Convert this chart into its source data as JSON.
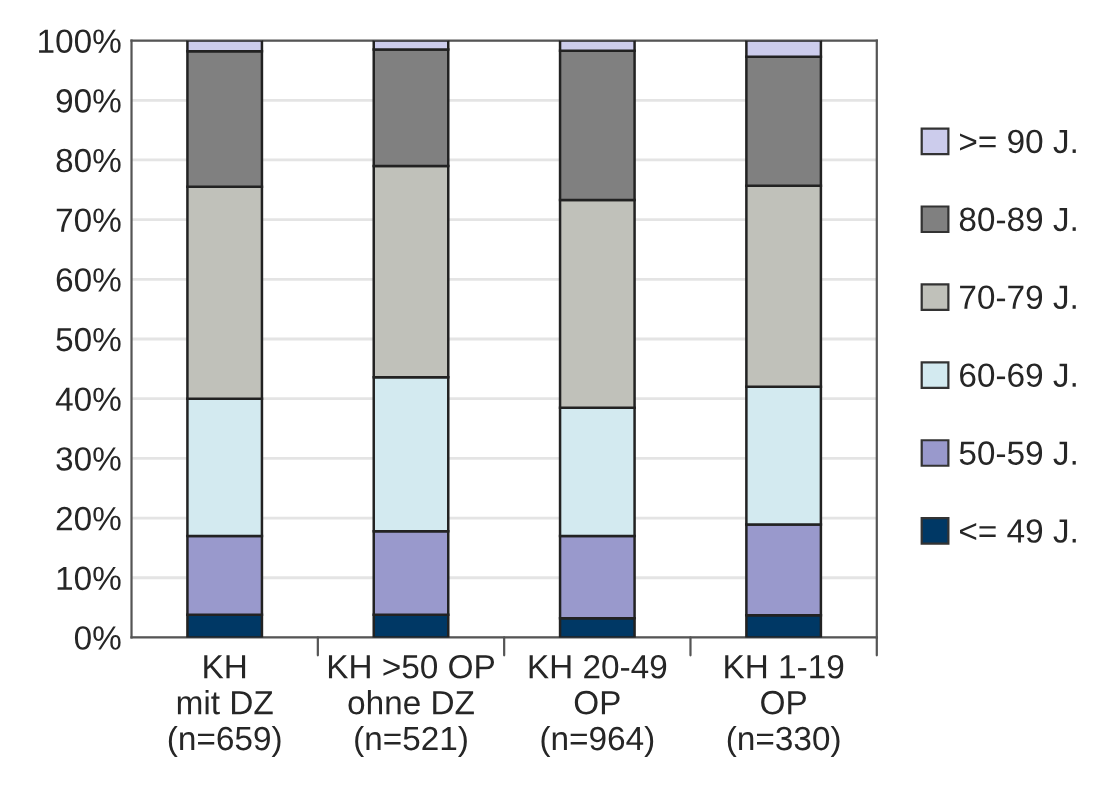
{
  "chart_data": {
    "type": "bar",
    "stacked": true,
    "categories": [
      "KH\nmit DZ\n(n=659)",
      "KH >50 OP\nohne DZ\n(n=521)",
      "KH 20-49\nOP\n(n=964)",
      "KH 1-19\nOP\n(n=330)"
    ],
    "series": [
      {
        "name": "<= 49 J.",
        "color": "#003865",
        "values": [
          3.8,
          3.8,
          3.2,
          3.7
        ]
      },
      {
        "name": "50-59 J.",
        "color": "#9999cc",
        "values": [
          13.2,
          14.0,
          13.8,
          15.2
        ]
      },
      {
        "name": "60-69 J.",
        "color": "#d3eaf0",
        "values": [
          23.0,
          25.8,
          21.5,
          23.1
        ]
      },
      {
        "name": "70-79 J.",
        "color": "#c0c1ba",
        "values": [
          35.5,
          35.4,
          34.8,
          33.7
        ]
      },
      {
        "name": "80-89 J.",
        "color": "#808080",
        "values": [
          22.7,
          19.5,
          25.0,
          21.6
        ]
      },
      {
        "name": ">= 90 J.",
        "color": "#ccccec",
        "values": [
          1.8,
          1.5,
          1.7,
          2.7
        ]
      }
    ],
    "ylim": [
      0,
      100
    ],
    "yticks": [
      {
        "value": 0,
        "label": "0%"
      },
      {
        "value": 10,
        "label": "10%"
      },
      {
        "value": 20,
        "label": "20%"
      },
      {
        "value": 30,
        "label": "30%"
      },
      {
        "value": 40,
        "label": "40%"
      },
      {
        "value": 50,
        "label": "50%"
      },
      {
        "value": 60,
        "label": "60%"
      },
      {
        "value": 70,
        "label": "70%"
      },
      {
        "value": 80,
        "label": "80%"
      },
      {
        "value": 90,
        "label": "90%"
      },
      {
        "value": 100,
        "label": "100%"
      }
    ],
    "grid": "y",
    "legend": "right"
  }
}
